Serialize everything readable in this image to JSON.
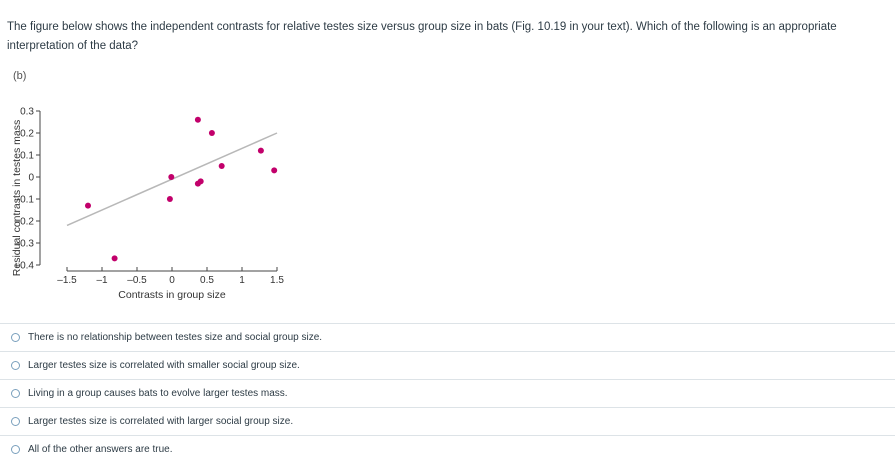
{
  "question": {
    "text": "The figure below shows the independent contrasts for relative testes size versus group size in bats (Fig. 10.19 in your text). Which of the following is an appropriate interpretation of the data?"
  },
  "figure": {
    "panel_label": "(b)"
  },
  "chart_data": {
    "type": "scatter",
    "xlabel": "Contrasts in group size",
    "ylabel": "Residual contrasts in testes mass",
    "xlim": [
      -1.5,
      1.5
    ],
    "ylim": [
      -0.4,
      0.3
    ],
    "x_ticks": [
      -1.5,
      -1,
      -0.5,
      0,
      0.5,
      1,
      1.5
    ],
    "x_tick_labels": [
      "–1.5",
      "–1",
      "–0.5",
      "0",
      "0.5",
      "1",
      "1.5"
    ],
    "y_ticks": [
      0.3,
      0.2,
      0.1,
      0,
      -0.1,
      -0.2,
      -0.3,
      -0.4
    ],
    "y_tick_labels": [
      "0.3",
      "0.2",
      "0.1",
      "0",
      "–0.1",
      "–0.2",
      "–0.3",
      "–0.4"
    ],
    "grid": false,
    "points_color": "#c2006b",
    "trendline_color": "#b8b8b8",
    "points": [
      {
        "x": -1.2,
        "y": -0.13
      },
      {
        "x": -0.82,
        "y": -0.37
      },
      {
        "x": -0.03,
        "y": -0.1
      },
      {
        "x": -0.01,
        "y": 0.0
      },
      {
        "x": 0.37,
        "y": -0.03
      },
      {
        "x": 0.41,
        "y": -0.02
      },
      {
        "x": 0.37,
        "y": 0.26
      },
      {
        "x": 0.57,
        "y": 0.2
      },
      {
        "x": 0.71,
        "y": 0.05
      },
      {
        "x": 1.27,
        "y": 0.12
      },
      {
        "x": 1.46,
        "y": 0.03
      }
    ],
    "trendline": {
      "x": [
        -1.5,
        1.5
      ],
      "y": [
        -0.22,
        0.2
      ]
    }
  },
  "answers": [
    {
      "label": "There is no relationship between testes size and social group size."
    },
    {
      "label": "Larger testes size is correlated with smaller social group size."
    },
    {
      "label": "Living in a group causes bats to evolve larger testes mass."
    },
    {
      "label": "Larger testes size is correlated with larger social group size."
    },
    {
      "label": "All of the other answers are true."
    }
  ]
}
